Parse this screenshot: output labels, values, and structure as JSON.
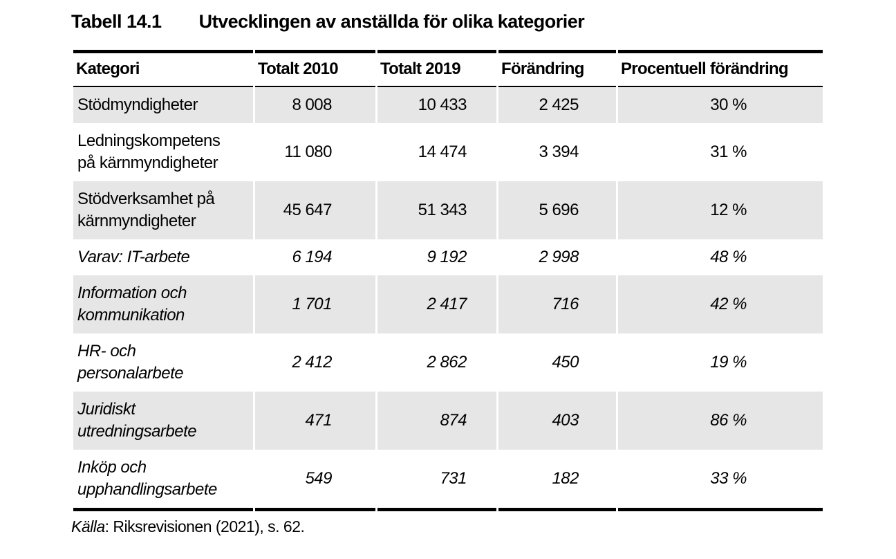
{
  "title": {
    "label": "Tabell 14.1",
    "text": "Utvecklingen av anställda för olika kategorier"
  },
  "table": {
    "headers": [
      "Kategori",
      "Totalt 2010",
      "Totalt 2019",
      "Förändring",
      "Procentuell förändring"
    ],
    "rows": [
      {
        "category": "Stödmyndigheter",
        "totalt_2010": "8 008",
        "totalt_2019": "10 433",
        "forandring": "2 425",
        "procentuell_forandring": "30 %"
      },
      {
        "category": "Ledningskompetens\npå kärnmyndigheter",
        "totalt_2010": "11 080",
        "totalt_2019": "14 474",
        "forandring": "3 394",
        "procentuell_forandring": "31 %"
      },
      {
        "category": "Stödverksamhet på\nkärnmyndigheter",
        "totalt_2010": "45 647",
        "totalt_2019": "51 343",
        "forandring": "5 696",
        "procentuell_forandring": "12 %"
      },
      {
        "category": "Varav: IT-arbete",
        "totalt_2010": "6 194",
        "totalt_2019": "9 192",
        "forandring": "2 998",
        "procentuell_forandring": "48 %"
      },
      {
        "category": "Information och\nkommunikation",
        "totalt_2010": "1 701",
        "totalt_2019": "2 417",
        "forandring": "716",
        "procentuell_forandring": "42 %"
      },
      {
        "category": "HR- och\npersonalarbete",
        "totalt_2010": "2 412",
        "totalt_2019": "2 862",
        "forandring": "450",
        "procentuell_forandring": "19 %"
      },
      {
        "category": "Juridiskt\nutredningsarbete",
        "totalt_2010": "471",
        "totalt_2019": "874",
        "forandring": "403",
        "procentuell_forandring": "86 %"
      },
      {
        "category": "Inköp och\nupphandlingsarbete",
        "totalt_2010": "549",
        "totalt_2019": "731",
        "forandring": "182",
        "procentuell_forandring": "33 %"
      }
    ]
  },
  "source": {
    "label": "Källa",
    "rest": ": Riksrevisionen (2021), s. 62."
  },
  "colors": {
    "shaded_row": "#e6e6e6",
    "text": "#000000",
    "border": "#000000"
  }
}
